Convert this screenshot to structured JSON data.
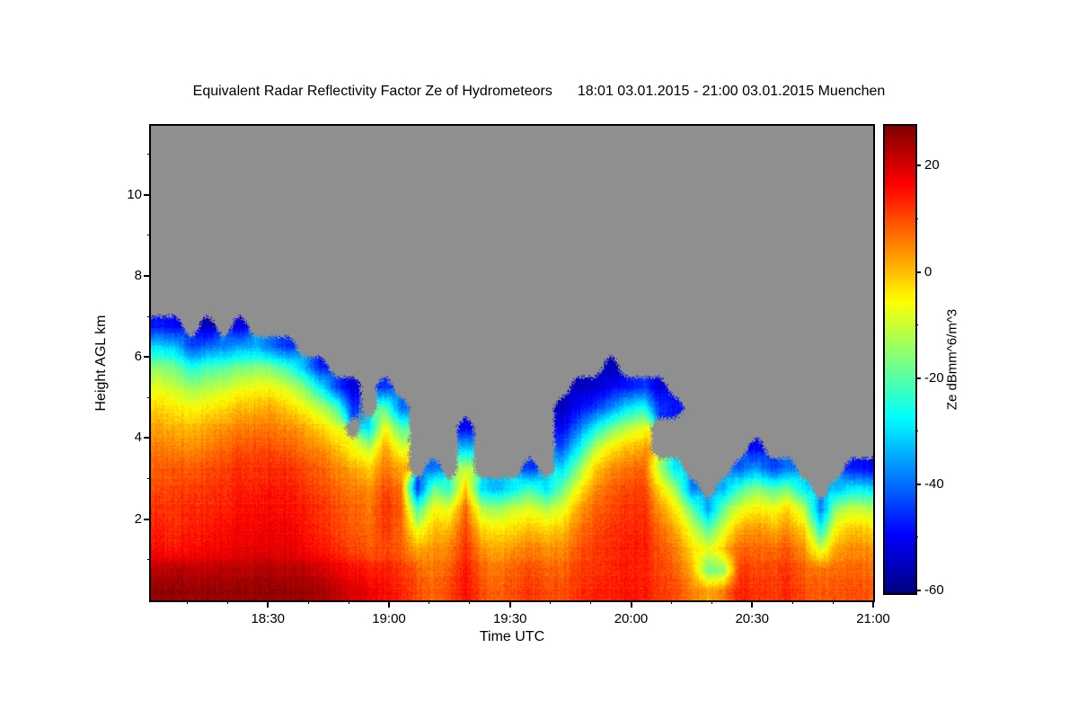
{
  "chart_data": {
    "type": "heatmap",
    "title": "Equivalent Radar Reflectivity Factor Ze of Hydrometeors",
    "title_period": "18:01 03.01.2015 - 21:00 03.01.2015 Muenchen",
    "xlabel": "Time UTC",
    "ylabel": "Height AGL km",
    "colorbar_label": "Ze dBmm^6/m^3",
    "x_ticks": [
      "18:30",
      "19:00",
      "19:30",
      "20:00",
      "20:30",
      "21:00"
    ],
    "x_tick_minutes": [
      29,
      59,
      89,
      119,
      149,
      179
    ],
    "x_minor_tick_minutes": [
      9,
      19,
      39,
      49,
      69,
      79,
      99,
      109,
      129,
      139,
      159,
      169
    ],
    "x_range_minutes": [
      0,
      179
    ],
    "x_start_label": "18:01",
    "y_ticks": [
      2,
      4,
      6,
      8,
      10
    ],
    "y_minor_ticks": [
      1,
      3,
      5,
      7,
      9,
      11
    ],
    "y_range_km": [
      0,
      11.7
    ],
    "colorbar_ticks": [
      20,
      0,
      -20,
      -40,
      -60
    ],
    "colorbar_minor_ticks": [
      10,
      -10,
      -30,
      -50
    ],
    "value_range": [
      -60.5,
      27.5
    ],
    "time_step_minutes": 4,
    "height_step_km": 0.5,
    "grid_lines": false,
    "legend": "colorbar-right",
    "colors": {
      "no_data": "#8f8f8f",
      "axis": "#000000",
      "background": "#ffffff"
    },
    "grid_dbz": [
      [
        26,
        22,
        16,
        14,
        12,
        10,
        8,
        6,
        2,
        -2,
        -8,
        -16,
        -30,
        -48
      ],
      [
        26,
        23,
        15,
        13,
        12,
        11,
        9,
        5,
        1,
        -4,
        -10,
        -18,
        -32,
        -50
      ],
      [
        25,
        22,
        16,
        14,
        13,
        11,
        8,
        4,
        0,
        -6,
        -14,
        -26,
        -44
      ],
      [
        26,
        22,
        17,
        15,
        13,
        12,
        10,
        6,
        2,
        -4,
        -12,
        -22,
        -40,
        -55
      ],
      [
        26,
        23,
        18,
        16,
        14,
        13,
        11,
        8,
        4,
        -2,
        -10,
        -20,
        -38
      ],
      [
        25,
        22,
        18,
        17,
        15,
        14,
        12,
        9,
        5,
        0,
        -8,
        -18,
        -36,
        -52
      ],
      [
        26,
        23,
        19,
        17,
        16,
        14,
        12,
        10,
        6,
        1,
        -6,
        -16,
        -34
      ],
      [
        26,
        23,
        19,
        18,
        16,
        15,
        13,
        10,
        6,
        2,
        -6,
        -18,
        -40
      ],
      [
        25,
        22,
        18,
        17,
        15,
        14,
        12,
        8,
        4,
        -2,
        -10,
        -24,
        -46
      ],
      [
        25,
        22,
        17,
        15,
        14,
        12,
        10,
        6,
        2,
        -6,
        -16,
        -34
      ],
      [
        24,
        20,
        15,
        13,
        12,
        10,
        8,
        4,
        -2,
        -12,
        -28,
        -48
      ],
      [
        22,
        18,
        13,
        11,
        10,
        8,
        5,
        0,
        -8,
        -20,
        -44
      ],
      [
        20,
        16,
        11,
        9,
        8,
        6,
        2,
        -6,
        null,
        -45,
        -52
      ],
      [
        18,
        14,
        9,
        7,
        6,
        4,
        -2,
        -12,
        -30
      ],
      [
        16,
        14,
        10,
        12,
        12,
        10,
        6,
        2,
        -6,
        -20,
        -45
      ],
      [
        14,
        12,
        9,
        8,
        9,
        7,
        2,
        -8,
        -20,
        -40
      ],
      [
        10,
        8,
        2,
        -8,
        -22,
        -45
      ],
      [
        8,
        6,
        4,
        0,
        -6,
        -18,
        -40
      ],
      [
        10,
        8,
        5,
        0,
        -8,
        -24
      ],
      [
        16,
        15,
        13,
        11,
        8,
        0,
        -12,
        -32,
        -50
      ],
      [
        10,
        8,
        4,
        -2,
        -12,
        -30
      ],
      [
        8,
        6,
        2,
        -4,
        -14,
        -34
      ],
      [
        10,
        8,
        4,
        -2,
        -10,
        -28
      ],
      [
        12,
        10,
        6,
        0,
        -8,
        -22,
        -45
      ],
      [
        10,
        8,
        4,
        -2,
        -12,
        -30
      ],
      [
        10,
        8,
        5,
        0,
        -8,
        -18,
        -30,
        -42,
        -50,
        -55
      ],
      [
        12,
        11,
        9,
        6,
        2,
        -6,
        -16,
        -28,
        -40,
        -50,
        -55
      ],
      [
        14,
        12,
        12,
        10,
        8,
        4,
        -2,
        -12,
        -28,
        -45,
        -54
      ],
      [
        14,
        13,
        13,
        12,
        10,
        8,
        4,
        -4,
        -18,
        -38,
        -50,
        -56
      ],
      [
        15,
        14,
        14,
        13,
        12,
        10,
        6,
        0,
        -12,
        -30,
        -48
      ],
      [
        14,
        13,
        14,
        13,
        12,
        11,
        8,
        2,
        -8,
        -25,
        -45
      ],
      [
        12,
        11,
        10,
        8,
        4,
        -2,
        -12,
        null,
        null,
        -45,
        -52
      ],
      [
        10,
        8,
        6,
        2,
        -4,
        -14,
        -30,
        null,
        null,
        -48
      ],
      [
        6,
        2,
        -2,
        -8,
        -18,
        -38
      ],
      [
        2,
        -18,
        -8,
        -20,
        -36
      ],
      [
        6,
        -16,
        0,
        -8,
        -18,
        -34
      ],
      [
        14,
        12,
        8,
        2,
        -8,
        -22,
        -42
      ],
      [
        12,
        10,
        8,
        4,
        -4,
        -16,
        -36,
        -50
      ],
      [
        12,
        11,
        8,
        2,
        -6,
        -20,
        -44
      ],
      [
        13,
        12,
        9,
        4,
        -2,
        -18,
        -40
      ],
      [
        10,
        8,
        4,
        -2,
        -12,
        -30
      ],
      [
        8,
        6,
        -10,
        -26,
        -40
      ],
      [
        9,
        7,
        3,
        -4,
        -14,
        -34
      ],
      [
        10,
        8,
        5,
        0,
        -10,
        -28,
        -48
      ],
      [
        9,
        7,
        4,
        -2,
        -12,
        -30,
        -50
      ]
    ]
  }
}
